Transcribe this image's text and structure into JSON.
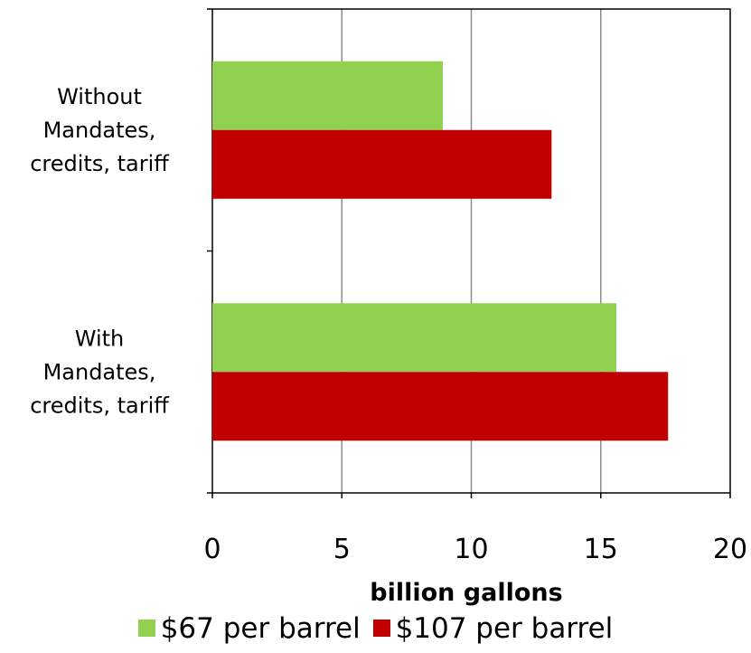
{
  "chart_data": {
    "type": "bar",
    "orientation": "horizontal",
    "title": "",
    "xlabel": "billion gallons",
    "ylabel": "",
    "xlim": [
      0,
      20
    ],
    "x_ticks": [
      "0",
      "5",
      "10",
      "15",
      "20"
    ],
    "categories": [
      [
        "Without",
        "Mandates,",
        "credits, tariff"
      ],
      [
        "With",
        "Mandates,",
        "credits, tariff"
      ]
    ],
    "series": [
      {
        "name": "$67 per barrel",
        "color": "#92d050",
        "values": [
          8.9,
          15.6
        ]
      },
      {
        "name": "$107 per barrel",
        "color": "#c00000",
        "values": [
          13.1,
          17.6
        ]
      }
    ],
    "grid": true,
    "legend_position": "bottom"
  }
}
